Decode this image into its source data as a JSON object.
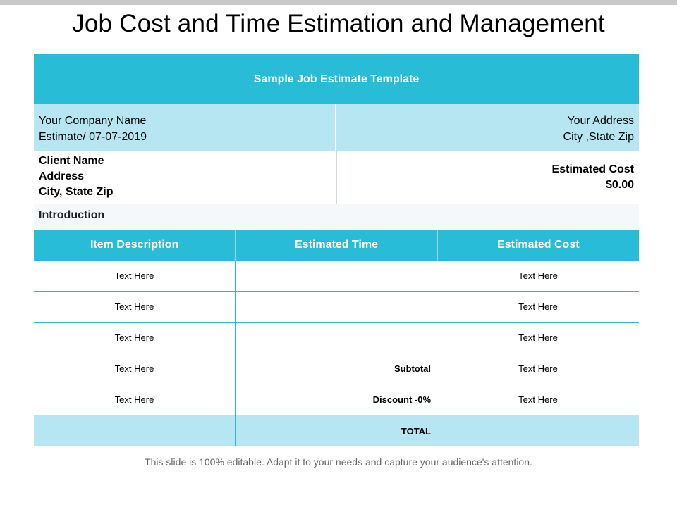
{
  "title": "Job Cost and Time Estimation and Management",
  "template_title": "Sample Job Estimate Template",
  "company": {
    "name": "Your Company Name",
    "estimate": "Estimate/ 07-07-2019"
  },
  "address": {
    "line1": "Your Address",
    "line2": "City ,State Zip"
  },
  "client": {
    "name": "Client Name",
    "address": "Address",
    "city": "City, State Zip"
  },
  "estimated_cost": {
    "label": "Estimated Cost",
    "value": "$0.00"
  },
  "introduction": "Introduction",
  "columns": [
    "Item Description",
    "Estimated Time",
    "Estimated Cost"
  ],
  "rows": [
    {
      "item": "Text Here",
      "time": "",
      "cost": "Text Here"
    },
    {
      "item": "Text Here",
      "time": "",
      "cost": "Text Here"
    },
    {
      "item": "Text Here",
      "time": "",
      "cost": "Text Here"
    },
    {
      "item": "Text Here",
      "time": "Subtotal",
      "cost": "Text Here"
    },
    {
      "item": "Text Here",
      "time": "Discount -0%",
      "cost": "Text Here"
    },
    {
      "item": "",
      "time": "TOTAL",
      "cost": ""
    }
  ],
  "footer": "This slide is 100% editable. Adapt it to your needs and capture your audience's attention.",
  "colors": {
    "accent": "#29bcd6",
    "light": "#b5e6f1"
  }
}
